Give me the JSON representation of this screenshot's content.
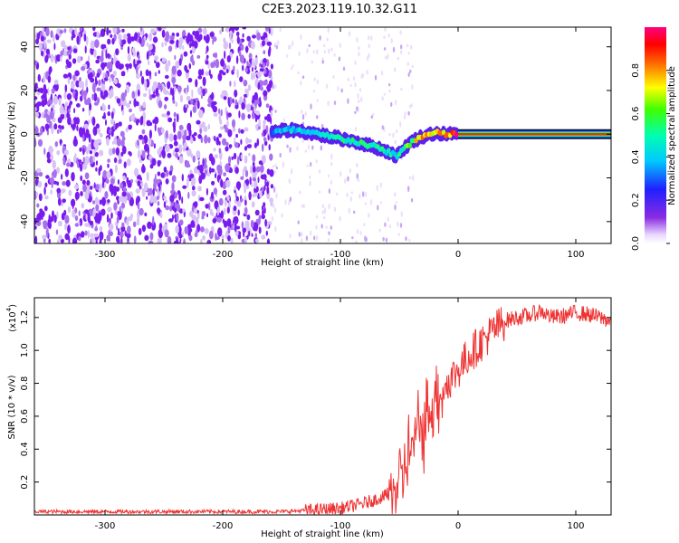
{
  "title": "C2E3.2023.119.10.32.G11",
  "chart_data": [
    {
      "type": "heatmap",
      "xlabel": "Height of straight line (km)",
      "ylabel": "Frequency (Hz)",
      "xlim": [
        -360,
        130
      ],
      "ylim": [
        -50,
        49
      ],
      "xticks": [
        -300,
        -200,
        -100,
        0,
        100
      ],
      "yticks": [
        -40,
        -20,
        0,
        20,
        40
      ],
      "colorbar": {
        "label": "Normalized spectral amplitude",
        "range": [
          0.0,
          1.0
        ],
        "ticks": [
          0.0,
          0.2,
          0.4,
          0.6,
          0.8
        ],
        "colors": [
          "#ffffff",
          "#7f00ff",
          "#0000ff",
          "#00ffff",
          "#00ff00",
          "#ffff00",
          "#ff0000",
          "#ff0080"
        ]
      },
      "features": {
        "noise_region_x": [
          -360,
          -158
        ],
        "noise_region_amplitude": 0.15,
        "track": [
          {
            "x": -158,
            "y": 0.5,
            "a": 0.35
          },
          {
            "x": -150,
            "y": 1.5,
            "a": 0.4
          },
          {
            "x": -140,
            "y": 2.0,
            "a": 0.45
          },
          {
            "x": -130,
            "y": 1.0,
            "a": 0.45
          },
          {
            "x": -120,
            "y": 0.0,
            "a": 0.5
          },
          {
            "x": -110,
            "y": -1.0,
            "a": 0.5
          },
          {
            "x": -100,
            "y": -2.0,
            "a": 0.5
          },
          {
            "x": -90,
            "y": -3.0,
            "a": 0.55
          },
          {
            "x": -80,
            "y": -4.5,
            "a": 0.55
          },
          {
            "x": -70,
            "y": -6.0,
            "a": 0.5
          },
          {
            "x": -60,
            "y": -8.0,
            "a": 0.5
          },
          {
            "x": -52,
            "y": -10.0,
            "a": 0.45
          },
          {
            "x": -45,
            "y": -6.0,
            "a": 0.6
          },
          {
            "x": -38,
            "y": -3.0,
            "a": 0.7
          },
          {
            "x": -30,
            "y": -1.0,
            "a": 0.8
          },
          {
            "x": -20,
            "y": 0.5,
            "a": 0.85
          },
          {
            "x": -10,
            "y": 0.0,
            "a": 0.8
          },
          {
            "x": 0,
            "y": 0.0,
            "a": 0.95
          },
          {
            "x": 130,
            "y": 0.0,
            "a": 0.95
          }
        ]
      }
    },
    {
      "type": "line",
      "xlabel": "Height of straight line (km)",
      "ylabel": "SNR (10 * v/v)",
      "multiplier_label": "(x10",
      "multiplier_exp": "4",
      "xlim": [
        -360,
        130
      ],
      "ylim": [
        0.0,
        1.32
      ],
      "xticks": [
        -300,
        -200,
        -100,
        0,
        100
      ],
      "yticks": [
        0.2,
        0.4,
        0.6,
        0.8,
        1.0,
        1.2
      ],
      "color": "#ee3333",
      "series": [
        {
          "x": [
            -360,
            -300,
            -250,
            -200,
            -150,
            -120,
            -100,
            -80,
            -60,
            -50,
            -40,
            -30,
            -20,
            -10,
            0,
            10,
            20,
            30,
            40,
            50,
            60,
            70,
            80,
            90,
            100,
            110,
            120,
            130
          ],
          "values": [
            0.02,
            0.02,
            0.02,
            0.02,
            0.02,
            0.03,
            0.04,
            0.07,
            0.12,
            0.2,
            0.4,
            0.55,
            0.7,
            0.8,
            0.88,
            0.98,
            1.05,
            1.12,
            1.18,
            1.2,
            1.21,
            1.24,
            1.2,
            1.21,
            1.23,
            1.22,
            1.2,
            1.18
          ]
        }
      ]
    }
  ]
}
